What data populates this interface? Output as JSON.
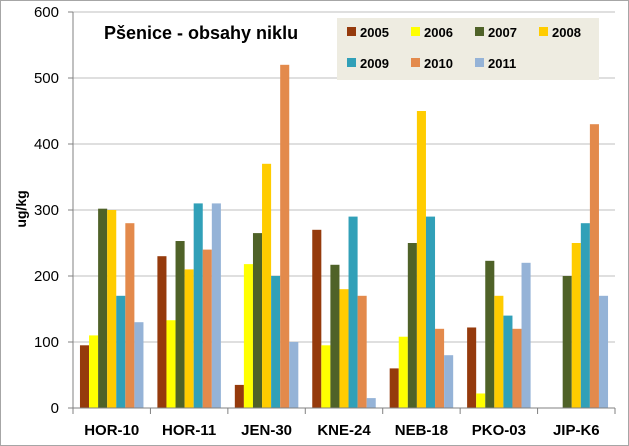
{
  "chart_data": {
    "type": "bar",
    "title": "Pšenice - obsahy niklu",
    "xlabel": "",
    "ylabel": "ug/kg",
    "ylim": [
      0,
      600
    ],
    "yticks": [
      0,
      100,
      200,
      300,
      400,
      500,
      600
    ],
    "grid": true,
    "legend_position": "top-right",
    "categories": [
      "HOR-10",
      "HOR-11",
      "JEN-30",
      "KNE-24",
      "NEB-18",
      "PKO-03",
      "JIP-K6"
    ],
    "series": [
      {
        "name": "2005",
        "color": "#953a0c",
        "values": [
          95,
          230,
          35,
          270,
          60,
          122,
          null
        ]
      },
      {
        "name": "2006",
        "color": "#ffff00",
        "values": [
          110,
          133,
          218,
          95,
          108,
          22,
          null
        ]
      },
      {
        "name": "2007",
        "color": "#4f6228",
        "values": [
          302,
          253,
          265,
          217,
          250,
          223,
          200
        ]
      },
      {
        "name": "2008",
        "color": "#ffcc00",
        "values": [
          300,
          210,
          370,
          180,
          450,
          170,
          250
        ]
      },
      {
        "name": "2009",
        "color": "#31a0b8",
        "values": [
          170,
          310,
          200,
          290,
          290,
          140,
          280
        ]
      },
      {
        "name": "2010",
        "color": "#e38a4c",
        "values": [
          280,
          240,
          520,
          170,
          120,
          120,
          430
        ]
      },
      {
        "name": "2011",
        "color": "#95b3d7",
        "values": [
          130,
          310,
          100,
          15,
          80,
          220,
          170
        ]
      }
    ]
  }
}
